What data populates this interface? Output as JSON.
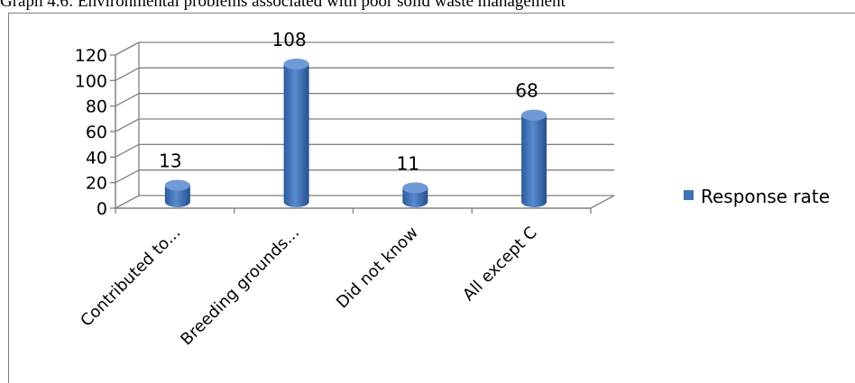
{
  "caption": "Graph 4.6:   Environmental problems associated with poor solid waste management",
  "chart_data": {
    "type": "bar",
    "style": "3d-cylinder",
    "categories": [
      "Contributed to...",
      "Breeding grounds...",
      "Did not know",
      "All except C"
    ],
    "series": [
      {
        "name": "Response rate",
        "values": [
          13,
          108,
          11,
          68
        ]
      }
    ],
    "data_labels": [
      "13",
      "108",
      "11",
      "68"
    ],
    "ylim": [
      0,
      120
    ],
    "yticks": [
      0,
      20,
      40,
      60,
      80,
      100,
      120
    ],
    "grid": true,
    "legend_position": "right",
    "colors": {
      "bar": "#3f73b8",
      "bar_dark": "#27518f",
      "bar_light": "#6f9ad6",
      "grid": "#808080"
    }
  }
}
